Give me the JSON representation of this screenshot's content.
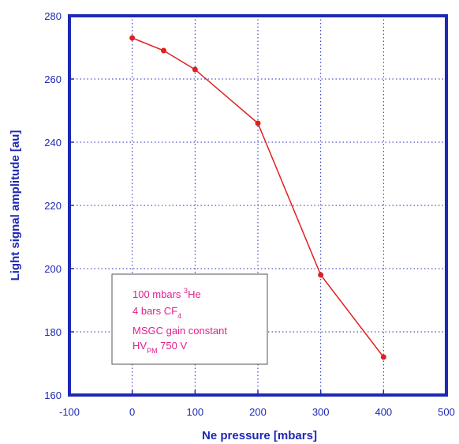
{
  "chart_data": {
    "type": "line",
    "title": "",
    "xlabel": "Ne pressure [mbars]",
    "ylabel": "Light signal amplitude [au]",
    "xlim": [
      -100,
      500
    ],
    "ylim": [
      160,
      280
    ],
    "xticks": [
      -100,
      0,
      100,
      200,
      300,
      400,
      500
    ],
    "yticks": [
      160,
      180,
      200,
      220,
      240,
      260,
      280
    ],
    "xtick_labels": [
      "-100",
      "0",
      "100",
      "200",
      "300",
      "400",
      "500"
    ],
    "ytick_labels": [
      "160",
      "180",
      "200",
      "220",
      "240",
      "260",
      "280"
    ],
    "grid": true,
    "legend": "none",
    "series": [
      {
        "x": [
          0,
          50,
          100,
          200,
          300,
          400
        ],
        "values": [
          273,
          269,
          263,
          246,
          198,
          172
        ],
        "color": "#e02020"
      }
    ],
    "annotation": {
      "line1": {
        "text": "100 mbars ",
        "sup": "3",
        "tail": "He"
      },
      "line2": {
        "text": "4 bars CF",
        "sub": "4"
      },
      "line3": {
        "text": "MSGC gain constant"
      },
      "line4": {
        "text": "HV",
        "sub": "PM",
        "tail": " 750 V"
      }
    },
    "colors": {
      "axis": "#1e28b4",
      "grid": "#1e28b4",
      "line": "#e02020",
      "annotation_text": "#e0208f"
    }
  }
}
